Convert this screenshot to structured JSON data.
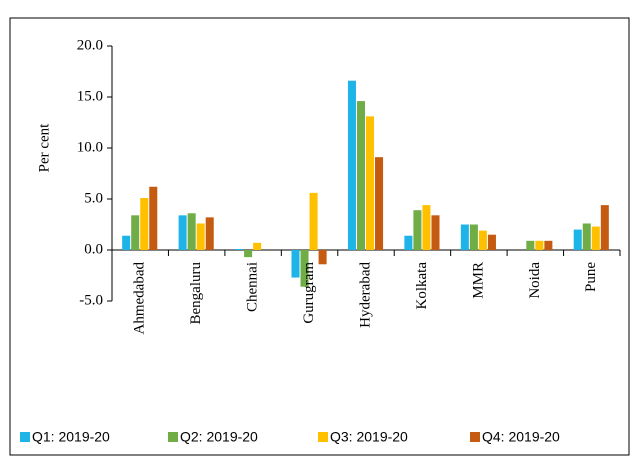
{
  "chart_data": {
    "type": "bar",
    "ylabel": "Per cent",
    "categories": [
      "Ahmedabad",
      "Bengaluru",
      "Chennai",
      "Gurugram",
      "Hyderabad",
      "Kolkata",
      "MMR",
      "Noida",
      "Pune"
    ],
    "series": [
      {
        "name": "Q1: 2019-20",
        "color": "#1fb4e8",
        "values": [
          1.4,
          3.4,
          0.1,
          -2.7,
          16.6,
          1.4,
          2.5,
          0.0,
          2.0
        ]
      },
      {
        "name": "Q2: 2019-20",
        "color": "#70ad47",
        "values": [
          3.4,
          3.6,
          -0.7,
          -3.6,
          14.6,
          3.9,
          2.5,
          0.9,
          2.6
        ]
      },
      {
        "name": "Q3: 2019-20",
        "color": "#ffc000",
        "values": [
          5.1,
          2.6,
          0.7,
          5.6,
          13.1,
          4.4,
          1.9,
          0.9,
          2.3
        ]
      },
      {
        "name": "Q4: 2019-20",
        "color": "#c55a11",
        "values": [
          6.2,
          3.2,
          0.0,
          -1.4,
          9.1,
          3.4,
          1.5,
          0.9,
          4.4
        ]
      }
    ],
    "ylim": [
      -5,
      20
    ],
    "yticks": [
      {
        "value": -5,
        "label": "-5.0"
      },
      {
        "value": 0,
        "label": "0.0"
      },
      {
        "value": 5,
        "label": "5.0"
      },
      {
        "value": 10,
        "label": "10.0"
      },
      {
        "value": 15,
        "label": "15.0"
      },
      {
        "value": 20,
        "label": "20.0"
      }
    ],
    "legend": "bottom"
  }
}
